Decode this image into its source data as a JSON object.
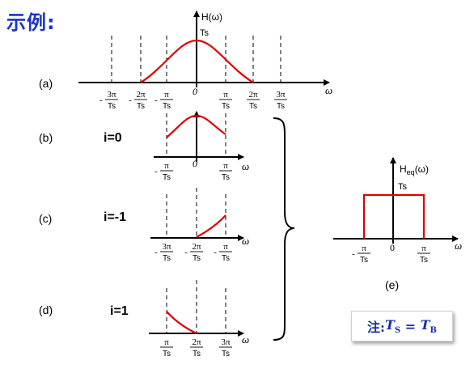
{
  "title": "示例:",
  "panels": {
    "a": {
      "label": "(a)",
      "yaxis": "H(ω)",
      "peak": "Ts"
    },
    "b": {
      "label": "(b)",
      "case": "i=0"
    },
    "c": {
      "label": "(c)",
      "case": "i=-1"
    },
    "d": {
      "label": "(d)",
      "case": "i=1"
    },
    "e": {
      "label": "(e)",
      "yaxis_main": "H",
      "yaxis_sub": "eq",
      "yaxis_arg": "(ω)",
      "level": "Ts"
    }
  },
  "axis_symbol": "ω",
  "zero": "0",
  "ticks": {
    "m3pi": {
      "sign": "-",
      "num": "3π",
      "den": "Ts"
    },
    "m2pi": {
      "sign": "-",
      "num": "2π",
      "den": "Ts"
    },
    "mpi": {
      "sign": "-",
      "num": "π",
      "den": "Ts"
    },
    "pi": {
      "sign": "",
      "num": "π",
      "den": "Ts"
    },
    "p2pi": {
      "sign": "",
      "num": "2π",
      "den": "Ts"
    },
    "p3pi": {
      "sign": "",
      "num": "3π",
      "den": "Ts"
    }
  },
  "note": {
    "prefix": "注:",
    "lhs": "T",
    "lhs_sub": "S",
    "eq": " = ",
    "rhs": "T",
    "rhs_sub": "B"
  },
  "colors": {
    "curve": "#e00000",
    "title": "#1a35c8",
    "note": "#1a2ea8"
  }
}
